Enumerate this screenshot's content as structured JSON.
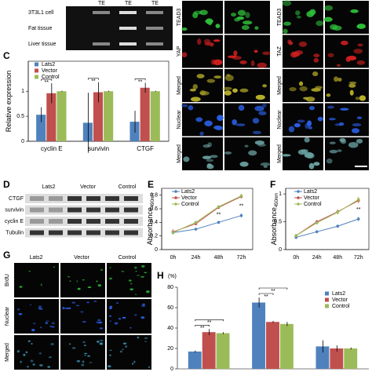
{
  "gel": {
    "columns": [
      "TE",
      "TE",
      "TE"
    ],
    "rows": [
      "3T3L1 cell",
      "Fat tissue",
      "Liver tissue"
    ]
  },
  "micrographs": {
    "groups": [
      {
        "rows": [
          "TEAD3",
          "YAP",
          "Merged",
          "Nuclear",
          "Merged"
        ]
      },
      {
        "rows": [
          "TEAD3",
          "TAZ",
          "Merged",
          "Nuclear",
          "Merged"
        ]
      }
    ]
  },
  "blot": {
    "label": "D",
    "columns": [
      "Lats2",
      "Vector",
      "Control"
    ],
    "rows": [
      "CTGF",
      "survivin",
      "cyclin E",
      "Tubulin"
    ]
  },
  "brdu": {
    "label": "G",
    "columns": [
      "Lats2",
      "Vector",
      "Control"
    ],
    "rows": [
      "BrdU",
      "Nuclear",
      "Merged"
    ]
  },
  "chart_data": [
    {
      "panel_label": "C",
      "type": "bar",
      "ylabel": "Relative expression",
      "categories": [
        "cyclin E",
        "survivin",
        "CTGF"
      ],
      "series": [
        {
          "name": "Lats2",
          "color": "#4f81bd",
          "values": [
            0.53,
            0.37,
            0.39
          ],
          "errors": [
            0.15,
            0.6,
            0.22
          ]
        },
        {
          "name": "Vector",
          "color": "#c0504d",
          "values": [
            0.96,
            0.98,
            1.07
          ],
          "errors": [
            0.2,
            0.2,
            0.1
          ]
        },
        {
          "name": "Control",
          "color": "#9bbb59",
          "values": [
            1,
            1,
            1
          ],
          "errors": [
            0.01,
            0.01,
            0.01
          ]
        }
      ],
      "ylim": [
        0,
        1.6
      ],
      "yticks": [
        0,
        0.5,
        1
      ],
      "annotations": [
        "**",
        "**",
        "**"
      ],
      "legend": "upper left"
    },
    {
      "panel_label": "E",
      "type": "line",
      "ylabel": "Absorbance",
      "ylabel_sub": "490nm",
      "categories": [
        "0h",
        "24h",
        "48h",
        "72h"
      ],
      "series": [
        {
          "name": "Lats2",
          "color": "#4f81bd",
          "values": [
            0.25,
            0.3,
            0.4,
            0.5
          ],
          "errors": [
            0.03,
            0.02,
            0.02,
            0.03
          ]
        },
        {
          "name": "Vector",
          "color": "#c0504d",
          "values": [
            0.26,
            0.38,
            0.62,
            0.78
          ],
          "errors": [
            0.04,
            0.02,
            0.02,
            0.03
          ]
        },
        {
          "name": "Control",
          "color": "#9bbb59",
          "values": [
            0.25,
            0.4,
            0.63,
            0.79
          ],
          "errors": [
            0.03,
            0.02,
            0.02,
            0.03
          ]
        }
      ],
      "ylim": [
        0,
        0.9
      ],
      "yticks": [
        0,
        0.2,
        0.4,
        0.6,
        0.8
      ],
      "annotations": [
        "**",
        "**"
      ],
      "legend": "upper left"
    },
    {
      "panel_label": "F",
      "type": "line",
      "ylabel": "Absorbance",
      "ylabel_sub": "450nm",
      "categories": [
        "0h",
        "24h",
        "48h",
        "72h"
      ],
      "series": [
        {
          "name": "Lats2",
          "color": "#4f81bd",
          "values": [
            0.22,
            0.32,
            0.42,
            0.55
          ],
          "errors": [
            0.03,
            0.03,
            0.03,
            0.04
          ]
        },
        {
          "name": "Vector",
          "color": "#c0504d",
          "values": [
            0.25,
            0.5,
            0.68,
            0.88
          ],
          "errors": [
            0.03,
            0.03,
            0.04,
            0.05
          ]
        },
        {
          "name": "Control",
          "color": "#9bbb59",
          "values": [
            0.25,
            0.48,
            0.67,
            0.9
          ],
          "errors": [
            0.03,
            0.03,
            0.04,
            0.05
          ]
        }
      ],
      "ylim": [
        0,
        1.1
      ],
      "yticks": [
        0,
        0.5,
        1
      ],
      "annotations": [
        "**"
      ],
      "legend": "upper left"
    },
    {
      "panel_label": "H",
      "type": "bar",
      "ylabel": "(%)",
      "categories": [
        null,
        null,
        null
      ],
      "series": [
        {
          "name": "Lats2",
          "color": "#4f81bd",
          "values": [
            17,
            65,
            22
          ],
          "errors": [
            1,
            5,
            6
          ]
        },
        {
          "name": "Vector",
          "color": "#c0504d",
          "values": [
            36,
            46,
            20
          ],
          "errors": [
            3,
            1,
            3
          ]
        },
        {
          "name": "Control",
          "color": "#9bbb59",
          "values": [
            35,
            44,
            20
          ],
          "errors": [
            1,
            2,
            1
          ]
        }
      ],
      "ylim": [
        0,
        80
      ],
      "yticks": [
        0,
        20,
        40,
        60,
        80
      ],
      "annotations": [
        "**",
        "**",
        "**",
        "**"
      ],
      "legend": "upper right"
    }
  ]
}
